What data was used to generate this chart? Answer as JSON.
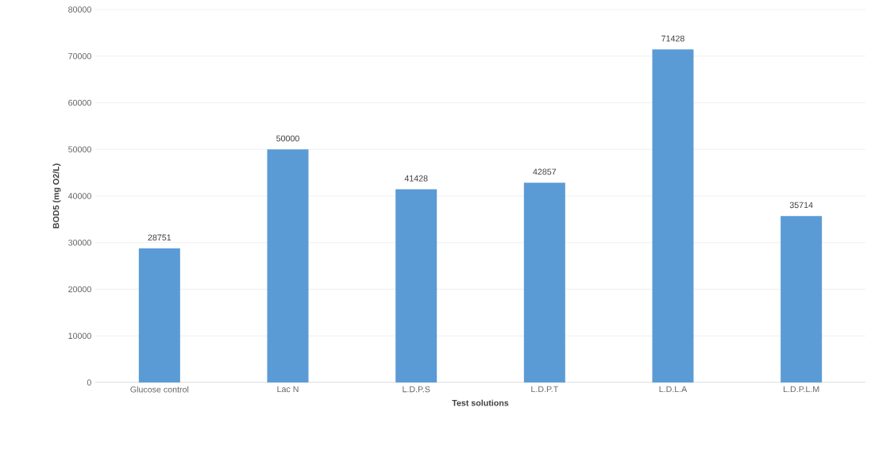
{
  "chart_data": {
    "type": "bar",
    "xlabel": "Test solutions",
    "ylabel": "BOD5 (mg O2/L)",
    "categories": [
      "Glucose control",
      "Lac N",
      "L.D.P.S",
      "L.D.P.T",
      "L.D.L.A",
      "L.D.P.L.M"
    ],
    "values": [
      28751,
      50000,
      41428,
      42857,
      71428,
      35714
    ],
    "color": "#5b9bd5",
    "ylim": [
      0,
      80000
    ],
    "yticks": [
      0,
      10000,
      20000,
      30000,
      40000,
      50000,
      60000,
      70000,
      80000
    ],
    "grid": "y",
    "data_labels": true
  }
}
